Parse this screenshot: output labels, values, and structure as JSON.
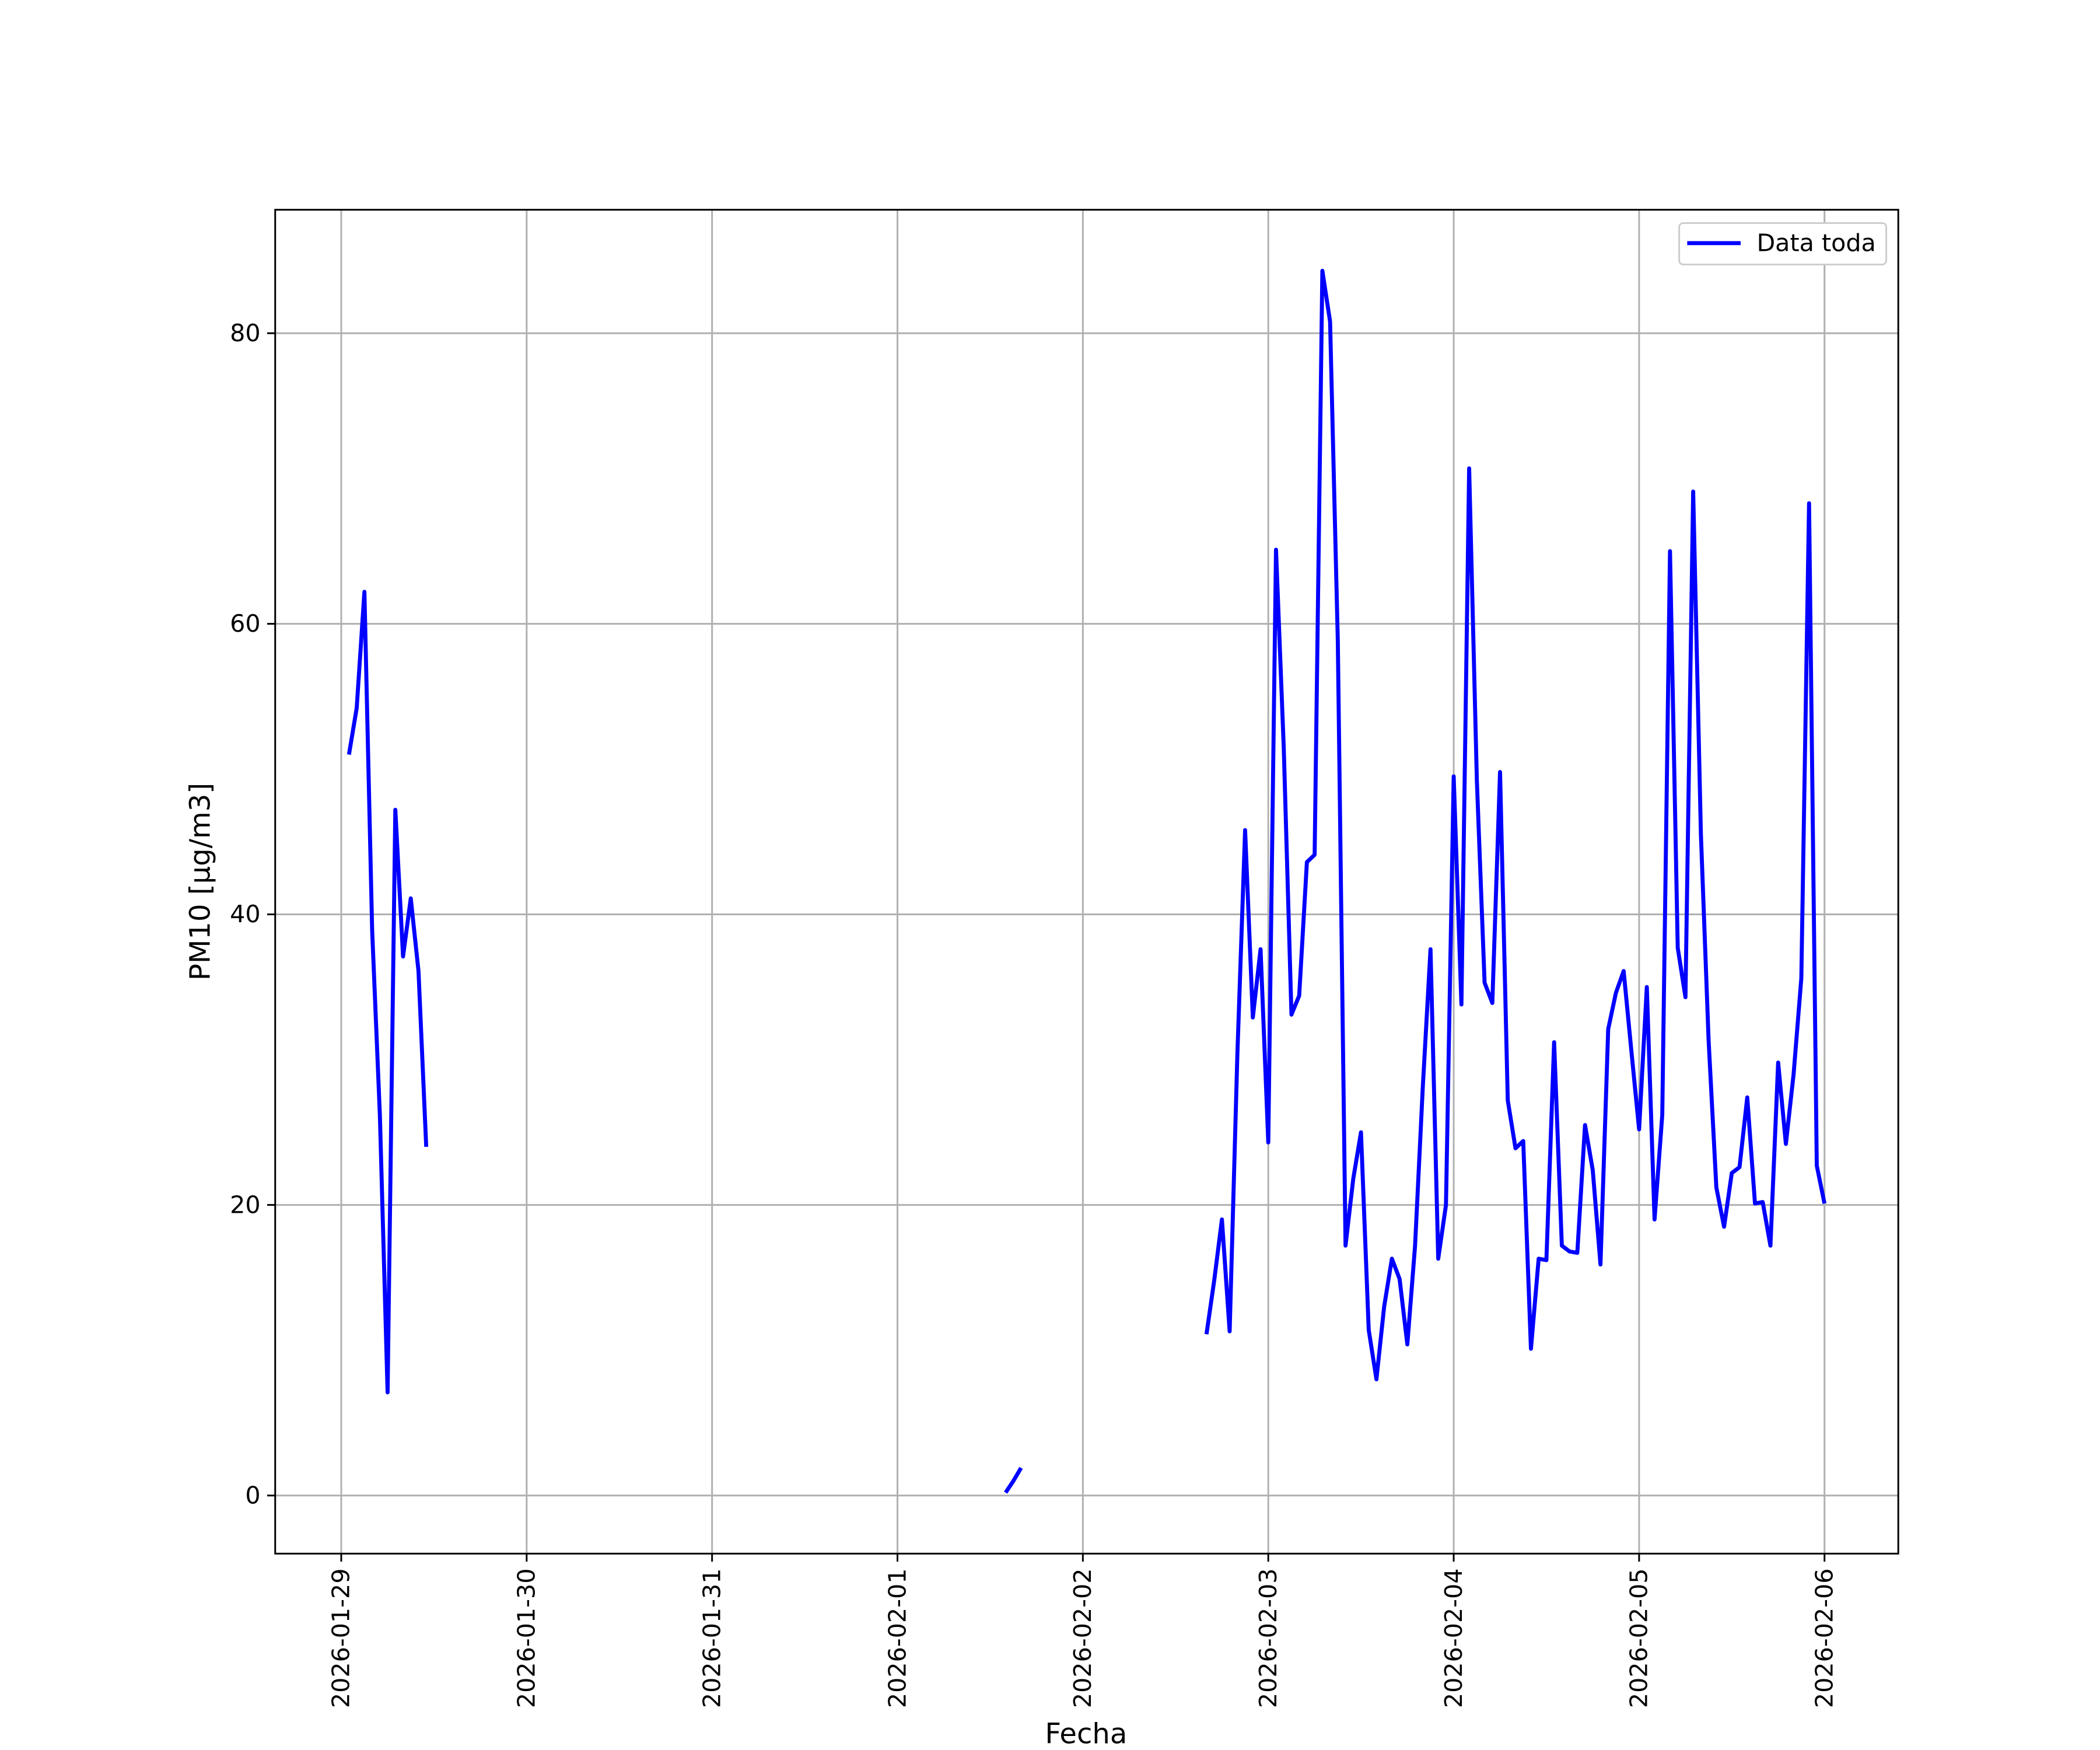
{
  "chart_data": {
    "type": "line",
    "xlabel": "Fecha",
    "ylabel": "PM10 [μg/m3]",
    "x": [
      "2026-01-29T01:00",
      "2026-01-29T02:00",
      "2026-01-29T03:00",
      "2026-01-29T04:00",
      "2026-01-29T05:00",
      "2026-01-29T06:00",
      "2026-01-29T07:00",
      "2026-01-29T08:00",
      "2026-01-29T09:00",
      "2026-01-29T10:00",
      "2026-01-29T11:00",
      "2026-01-29T12:00",
      "2026-02-01T14:00",
      "2026-02-01T15:00",
      "2026-02-01T16:00",
      "2026-02-01T17:00",
      "2026-02-02T16:00",
      "2026-02-02T17:00",
      "2026-02-02T18:00",
      "2026-02-02T19:00",
      "2026-02-02T20:00",
      "2026-02-02T21:00",
      "2026-02-02T22:00",
      "2026-02-02T23:00",
      "2026-02-03T00:00",
      "2026-02-03T01:00",
      "2026-02-03T02:00",
      "2026-02-03T03:00",
      "2026-02-03T04:00",
      "2026-02-03T05:00",
      "2026-02-03T06:00",
      "2026-02-03T07:00",
      "2026-02-03T08:00",
      "2026-02-03T09:00",
      "2026-02-03T10:00",
      "2026-02-03T11:00",
      "2026-02-03T12:00",
      "2026-02-03T13:00",
      "2026-02-03T14:00",
      "2026-02-03T15:00",
      "2026-02-03T16:00",
      "2026-02-03T17:00",
      "2026-02-03T18:00",
      "2026-02-03T19:00",
      "2026-02-03T20:00",
      "2026-02-03T21:00",
      "2026-02-03T22:00",
      "2026-02-03T23:00",
      "2026-02-04T00:00",
      "2026-02-04T01:00",
      "2026-02-04T02:00",
      "2026-02-04T03:00",
      "2026-02-04T04:00",
      "2026-02-04T05:00",
      "2026-02-04T06:00",
      "2026-02-04T07:00",
      "2026-02-04T08:00",
      "2026-02-04T09:00",
      "2026-02-04T10:00",
      "2026-02-04T11:00",
      "2026-02-04T12:00",
      "2026-02-04T13:00",
      "2026-02-04T14:00",
      "2026-02-04T15:00",
      "2026-02-04T16:00",
      "2026-02-04T17:00",
      "2026-02-04T18:00",
      "2026-02-04T19:00",
      "2026-02-04T20:00",
      "2026-02-04T21:00",
      "2026-02-04T22:00",
      "2026-02-04T23:00",
      "2026-02-05T00:00",
      "2026-02-05T01:00",
      "2026-02-05T02:00",
      "2026-02-05T03:00",
      "2026-02-05T04:00",
      "2026-02-05T05:00",
      "2026-02-05T06:00",
      "2026-02-05T07:00",
      "2026-02-05T08:00",
      "2026-02-05T09:00",
      "2026-02-05T10:00",
      "2026-02-05T11:00",
      "2026-02-05T12:00",
      "2026-02-05T13:00",
      "2026-02-05T14:00",
      "2026-02-05T15:00",
      "2026-02-05T16:00",
      "2026-02-05T17:00",
      "2026-02-05T18:00",
      "2026-02-05T19:00",
      "2026-02-05T20:00",
      "2026-02-05T21:00",
      "2026-02-05T22:00",
      "2026-02-05T23:00",
      "2026-02-06T00:00"
    ],
    "series": [
      {
        "name": "Data toda",
        "color": "#0000ff",
        "values": [
          51.0,
          54.2,
          62.2,
          38.9,
          26.2,
          7.1,
          47.2,
          37.1,
          41.1,
          36.1,
          24.0,
          null,
          0.2,
          1.0,
          1.9,
          null,
          11.1,
          14.8,
          19.0,
          11.3,
          30.4,
          45.8,
          32.9,
          37.6,
          24.3,
          65.1,
          51.5,
          33.1,
          34.4,
          43.6,
          44.1,
          84.3,
          80.8,
          58.8,
          17.2,
          21.8,
          25.0,
          11.4,
          8.0,
          13.0,
          16.3,
          14.9,
          10.4,
          17.2,
          28.1,
          37.6,
          16.3,
          20.0,
          49.5,
          33.8,
          70.7,
          49.2,
          35.3,
          33.9,
          49.8,
          27.2,
          23.9,
          24.4,
          10.1,
          16.3,
          16.2,
          31.2,
          17.2,
          16.8,
          16.7,
          25.5,
          22.4,
          15.9,
          32.1,
          34.6,
          36.1,
          30.6,
          25.2,
          35.0,
          19.0,
          26.2,
          65.0,
          37.7,
          34.3,
          69.1,
          45.5,
          31.3,
          21.2,
          18.5,
          22.2,
          22.6,
          27.4,
          20.1,
          20.2,
          17.2,
          29.8,
          24.2,
          29.0,
          35.6,
          68.3,
          22.7,
          20.1
        ]
      }
    ],
    "xlim": [
      "2026-01-28T15:27",
      "2026-02-06T09:33"
    ],
    "xticks": [
      {
        "value": "2026-01-29T00:00",
        "label": "2026-01-29"
      },
      {
        "value": "2026-01-30T00:00",
        "label": "2026-01-30"
      },
      {
        "value": "2026-01-31T00:00",
        "label": "2026-01-31"
      },
      {
        "value": "2026-02-01T00:00",
        "label": "2026-02-01"
      },
      {
        "value": "2026-02-02T00:00",
        "label": "2026-02-02"
      },
      {
        "value": "2026-02-03T00:00",
        "label": "2026-02-03"
      },
      {
        "value": "2026-02-04T00:00",
        "label": "2026-02-04"
      },
      {
        "value": "2026-02-05T00:00",
        "label": "2026-02-05"
      },
      {
        "value": "2026-02-06T00:00",
        "label": "2026-02-06"
      }
    ],
    "ylim": [
      -4.0,
      88.5
    ],
    "yticks": [
      0,
      20,
      40,
      60,
      80
    ],
    "grid": true,
    "legend": "upper right"
  }
}
